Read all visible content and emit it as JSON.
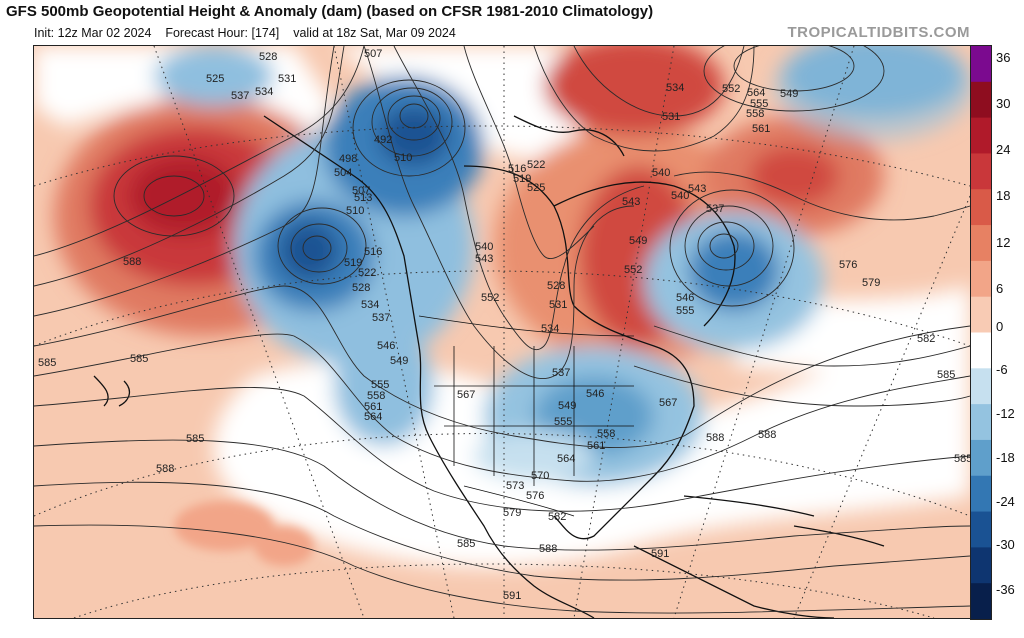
{
  "header": {
    "title": "GFS 500mb Geopotential Height & Anomaly (dam) (based on CFSR 1981-2010 Climatology)",
    "subtitle_init": "Init: 12z Mar 02 2024",
    "subtitle_forecast": "Forecast Hour: [174]",
    "subtitle_valid": "valid at 18z Sat, Mar 09 2024",
    "brand": "TROPICALTIDBITS.COM"
  },
  "colorbar": {
    "labels": [
      "36",
      "30",
      "24",
      "18",
      "12",
      "6",
      "0",
      "-6",
      "-12",
      "-18",
      "-24",
      "-30",
      "-36"
    ],
    "colors": [
      "#7b0a8f",
      "#8e0d1f",
      "#b01a2a",
      "#c9373a",
      "#d95a48",
      "#e78163",
      "#f2a588",
      "#f8cbb4",
      "#ffffff",
      "#c6e0ef",
      "#94c3e0",
      "#5f9fcb",
      "#3377b3",
      "#1a5293",
      "#0e3570",
      "#081f4b"
    ]
  },
  "contour_labels": [
    {
      "text": "507"
    },
    {
      "text": "492"
    },
    {
      "text": "498"
    },
    {
      "text": "504"
    },
    {
      "text": "510"
    },
    {
      "text": "510"
    },
    {
      "text": "513"
    },
    {
      "text": "507"
    },
    {
      "text": "516"
    },
    {
      "text": "519"
    },
    {
      "text": "522"
    },
    {
      "text": "528"
    },
    {
      "text": "534"
    },
    {
      "text": "537"
    },
    {
      "text": "546"
    },
    {
      "text": "549"
    },
    {
      "text": "555"
    },
    {
      "text": "558"
    },
    {
      "text": "561"
    },
    {
      "text": "564"
    },
    {
      "text": "525"
    },
    {
      "text": "528"
    },
    {
      "text": "531"
    },
    {
      "text": "537"
    },
    {
      "text": "534"
    },
    {
      "text": "588"
    },
    {
      "text": "585"
    },
    {
      "text": "585"
    },
    {
      "text": "585"
    },
    {
      "text": "588"
    },
    {
      "text": "540"
    },
    {
      "text": "543"
    },
    {
      "text": "552"
    },
    {
      "text": "528"
    },
    {
      "text": "531"
    },
    {
      "text": "534"
    },
    {
      "text": "537"
    },
    {
      "text": "549"
    },
    {
      "text": "555"
    },
    {
      "text": "546"
    },
    {
      "text": "558"
    },
    {
      "text": "561"
    },
    {
      "text": "564"
    },
    {
      "text": "567"
    },
    {
      "text": "567"
    },
    {
      "text": "570"
    },
    {
      "text": "573"
    },
    {
      "text": "576"
    },
    {
      "text": "579"
    },
    {
      "text": "582"
    },
    {
      "text": "585"
    },
    {
      "text": "588"
    },
    {
      "text": "591"
    },
    {
      "text": "591"
    },
    {
      "text": "516"
    },
    {
      "text": "519"
    },
    {
      "text": "522"
    },
    {
      "text": "525"
    },
    {
      "text": "534"
    },
    {
      "text": "531"
    },
    {
      "text": "540"
    },
    {
      "text": "543"
    },
    {
      "text": "540"
    },
    {
      "text": "543"
    },
    {
      "text": "549"
    },
    {
      "text": "552"
    },
    {
      "text": "537"
    },
    {
      "text": "546"
    },
    {
      "text": "555"
    },
    {
      "text": "552"
    },
    {
      "text": "555"
    },
    {
      "text": "558"
    },
    {
      "text": "561"
    },
    {
      "text": "564"
    },
    {
      "text": "549"
    },
    {
      "text": "576"
    },
    {
      "text": "579"
    },
    {
      "text": "582"
    },
    {
      "text": "585"
    },
    {
      "text": "588"
    },
    {
      "text": "585"
    },
    {
      "text": "588"
    }
  ]
}
